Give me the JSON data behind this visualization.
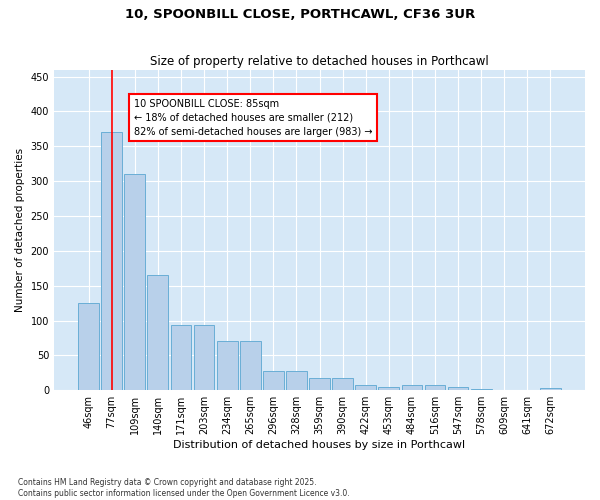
{
  "title": "10, SPOONBILL CLOSE, PORTHCAWL, CF36 3UR",
  "subtitle": "Size of property relative to detached houses in Porthcawl",
  "xlabel": "Distribution of detached houses by size in Porthcawl",
  "ylabel": "Number of detached properties",
  "categories": [
    "46sqm",
    "77sqm",
    "109sqm",
    "140sqm",
    "171sqm",
    "203sqm",
    "234sqm",
    "265sqm",
    "296sqm",
    "328sqm",
    "359sqm",
    "390sqm",
    "422sqm",
    "453sqm",
    "484sqm",
    "516sqm",
    "547sqm",
    "578sqm",
    "609sqm",
    "641sqm",
    "672sqm"
  ],
  "values": [
    125,
    370,
    310,
    165,
    93,
    93,
    70,
    70,
    28,
    28,
    18,
    18,
    7,
    5,
    8,
    8,
    4,
    2,
    1,
    1,
    3
  ],
  "bar_color": "#b8d0ea",
  "bar_edge_color": "#6aaed6",
  "red_line_index": 1,
  "ylim": [
    0,
    460
  ],
  "yticks": [
    0,
    50,
    100,
    150,
    200,
    250,
    300,
    350,
    400,
    450
  ],
  "bg_color": "#d6e8f7",
  "annotation_text": "10 SPOONBILL CLOSE: 85sqm\n← 18% of detached houses are smaller (212)\n82% of semi-detached houses are larger (983) →",
  "footnote1": "Contains HM Land Registry data © Crown copyright and database right 2025.",
  "footnote2": "Contains public sector information licensed under the Open Government Licence v3.0.",
  "title_fontsize": 9.5,
  "subtitle_fontsize": 8.5,
  "xlabel_fontsize": 8,
  "ylabel_fontsize": 7.5,
  "tick_fontsize": 7,
  "annot_fontsize": 7,
  "footnote_fontsize": 5.5
}
